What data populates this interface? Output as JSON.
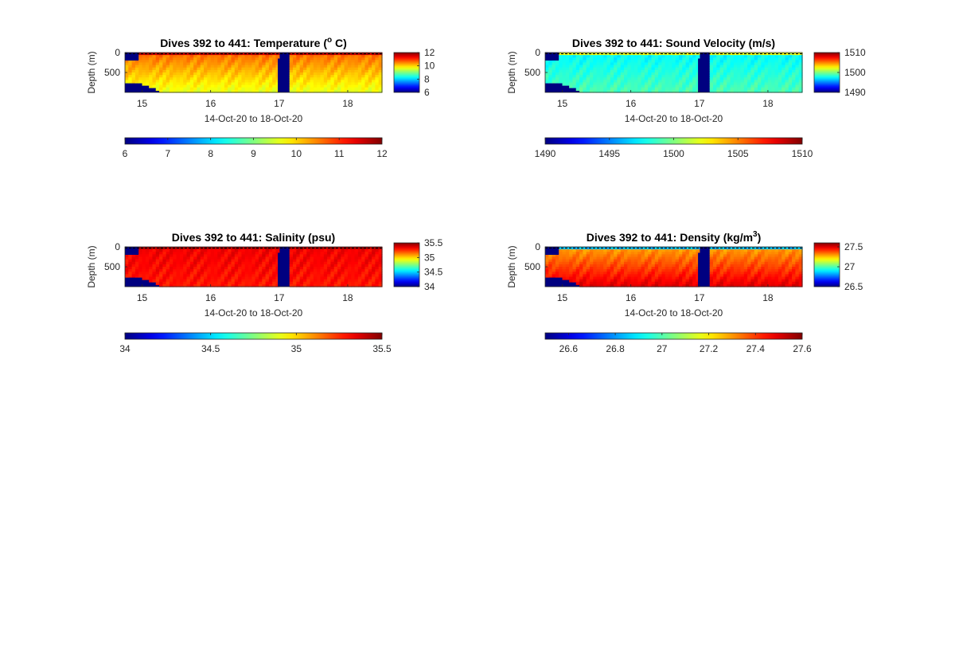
{
  "chart_data": [
    {
      "type": "heatmap",
      "title_prefix": "Dives 392 to 441: Temperature (",
      "title_sup": "o",
      "title_suffix": " C)",
      "xlabel": "14-Oct-20 to 18-Oct-20",
      "ylabel": "Depth (m)",
      "xticks": [
        "15",
        "16",
        "17",
        "18"
      ],
      "xtick_values": [
        15,
        16,
        17,
        18
      ],
      "xlim": [
        14.75,
        18.5
      ],
      "yticks": [
        "0",
        "500"
      ],
      "ytick_values": [
        0,
        500
      ],
      "ylim": [
        0,
        1000
      ],
      "clim": [
        6,
        12
      ],
      "colorbar_right_ticks": [
        "12",
        "10",
        "8",
        "6"
      ],
      "colorbar_right_values": [
        12,
        10,
        8,
        6
      ],
      "colorbar_bottom_ticks": [
        "6",
        "7",
        "8",
        "9",
        "10",
        "11",
        "12"
      ],
      "colorbar_bottom_values": [
        6,
        7,
        8,
        9,
        10,
        11,
        12
      ],
      "profile": {
        "surface": 11.6,
        "mixed_depth": 60,
        "mid": 10.6,
        "deep": 9.6
      },
      "colormap": "jet"
    },
    {
      "type": "heatmap",
      "title_prefix": "Dives 392 to 441: Sound Velocity (m/s)",
      "title_sup": "",
      "title_suffix": "",
      "xlabel": "14-Oct-20 to 18-Oct-20",
      "ylabel": "Depth (m)",
      "xticks": [
        "15",
        "16",
        "17",
        "18"
      ],
      "xtick_values": [
        15,
        16,
        17,
        18
      ],
      "xlim": [
        14.75,
        18.5
      ],
      "yticks": [
        "0",
        "500"
      ],
      "ytick_values": [
        0,
        500
      ],
      "ylim": [
        0,
        1000
      ],
      "clim": [
        1490,
        1510
      ],
      "colorbar_right_ticks": [
        "1510",
        "1500",
        "1490"
      ],
      "colorbar_right_values": [
        1510,
        1500,
        1490
      ],
      "colorbar_bottom_ticks": [
        "1490",
        "1495",
        "1500",
        "1505",
        "1510"
      ],
      "colorbar_bottom_values": [
        1490,
        1495,
        1500,
        1505,
        1510
      ],
      "profile": {
        "surface": 1502,
        "mixed_depth": 70,
        "mid": 1497.5,
        "deep": 1499
      },
      "colormap": "jet"
    },
    {
      "type": "heatmap",
      "title_prefix": "Dives 392 to 441: Salinity (psu)",
      "title_sup": "",
      "title_suffix": "",
      "xlabel": "14-Oct-20 to 18-Oct-20",
      "ylabel": "Depth (m)",
      "xticks": [
        "15",
        "16",
        "17",
        "18"
      ],
      "xtick_values": [
        15,
        16,
        17,
        18
      ],
      "xlim": [
        14.75,
        18.5
      ],
      "yticks": [
        "0",
        "500"
      ],
      "ytick_values": [
        0,
        500
      ],
      "ylim": [
        0,
        1000
      ],
      "clim": [
        34,
        35.5
      ],
      "colorbar_right_ticks": [
        "35.5",
        "35",
        "34.5",
        "34"
      ],
      "colorbar_right_values": [
        35.5,
        35,
        34.5,
        34
      ],
      "colorbar_bottom_ticks": [
        "34",
        "34.5",
        "35",
        "35.5"
      ],
      "colorbar_bottom_values": [
        34,
        34.5,
        35,
        35.5
      ],
      "profile": {
        "surface": 35.42,
        "mixed_depth": 40,
        "mid": 35.33,
        "deep": 35.28
      },
      "colormap": "jet"
    },
    {
      "type": "heatmap",
      "title_prefix": "Dives 392 to 441: Density (kg/m",
      "title_sup": "3",
      "title_suffix": ")",
      "xlabel": "14-Oct-20 to 18-Oct-20",
      "ylabel": "Depth (m)",
      "xticks": [
        "15",
        "16",
        "17",
        "18"
      ],
      "xtick_values": [
        15,
        16,
        17,
        18
      ],
      "xlim": [
        14.75,
        18.5
      ],
      "yticks": [
        "0",
        "500"
      ],
      "ytick_values": [
        0,
        500
      ],
      "ylim": [
        0,
        1000
      ],
      "clim": [
        26.5,
        27.6
      ],
      "colorbar_right_ticks": [
        "27.5",
        "27",
        "26.5"
      ],
      "colorbar_right_values": [
        27.5,
        27,
        26.5
      ],
      "colorbar_bottom_ticks": [
        "26.6",
        "26.8",
        "27",
        "27.2",
        "27.4",
        "27.6"
      ],
      "colorbar_bottom_values": [
        26.6,
        26.8,
        27,
        27.2,
        27.4,
        27.6
      ],
      "profile": {
        "surface": 26.85,
        "mixed_depth": 80,
        "mid": 27.3,
        "deep": 27.5
      },
      "colormap": "jet"
    }
  ]
}
